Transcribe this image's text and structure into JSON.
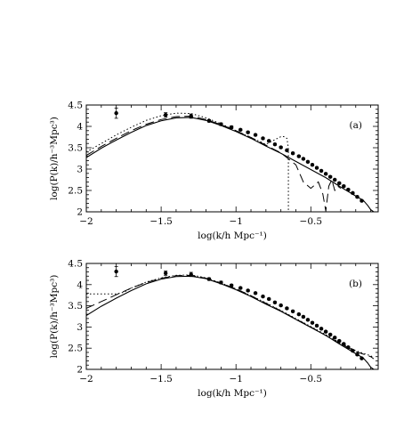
{
  "chart_data": [
    {
      "type": "line",
      "panel_label": "(a)",
      "xlabel": "log(k/h Mpc⁻¹)",
      "ylabel": "log(P(k)/h⁻³Mpc³)",
      "xlim": [
        -2,
        -0.05
      ],
      "ylim": [
        2,
        4.5
      ],
      "xticks": [
        -2,
        -1.5,
        -1,
        -0.5
      ],
      "xtick_labels": [
        "−2",
        "−1.5",
        "−1",
        "−0.5"
      ],
      "yticks": [
        2,
        2.5,
        3,
        3.5,
        4,
        4.5
      ],
      "ytick_labels": [
        "2",
        "2.5",
        "3",
        "3.5",
        "4",
        "4.5"
      ],
      "grid": false,
      "series": [
        {
          "style": "solid",
          "x": [
            -2,
            -1.9,
            -1.8,
            -1.7,
            -1.6,
            -1.5,
            -1.4,
            -1.3,
            -1.2,
            -1.1,
            -1.0,
            -0.9,
            -0.8,
            -0.7,
            -0.6,
            -0.5,
            -0.4,
            -0.3,
            -0.2,
            -0.15,
            -0.12,
            -0.1,
            -0.08
          ],
          "y": [
            3.27,
            3.49,
            3.68,
            3.86,
            4.02,
            4.13,
            4.2,
            4.21,
            4.14,
            4.02,
            3.88,
            3.72,
            3.54,
            3.37,
            3.18,
            2.99,
            2.8,
            2.58,
            2.37,
            2.27,
            2.15,
            2.05,
            2.0
          ]
        },
        {
          "style": "dashed",
          "x": [
            -2,
            -1.9,
            -1.8,
            -1.7,
            -1.6,
            -1.5,
            -1.4,
            -1.3,
            -1.2,
            -1.1,
            -1.0,
            -0.9,
            -0.8,
            -0.7,
            -0.6,
            -0.55,
            -0.5,
            -0.45,
            -0.42,
            -0.4,
            -0.38,
            -0.36,
            -0.34,
            -0.32,
            -0.3
          ],
          "y": [
            3.32,
            3.53,
            3.72,
            3.9,
            4.05,
            4.16,
            4.23,
            4.24,
            4.16,
            4.04,
            3.9,
            3.74,
            3.56,
            3.38,
            3.1,
            2.7,
            2.55,
            2.7,
            2.42,
            2.02,
            2.6,
            2.75,
            2.5,
            2.6,
            2.55
          ]
        },
        {
          "style": "dotted",
          "x": [
            -2,
            -1.9,
            -1.8,
            -1.7,
            -1.6,
            -1.5,
            -1.4,
            -1.3,
            -1.2,
            -1.1,
            -1.0,
            -0.9,
            -0.8,
            -0.7,
            -0.68,
            -0.66,
            -0.65,
            -0.65
          ],
          "y": [
            3.4,
            3.6,
            3.8,
            3.98,
            4.14,
            4.25,
            4.31,
            4.3,
            4.2,
            4.06,
            3.9,
            3.74,
            3.58,
            3.76,
            3.76,
            3.72,
            3.5,
            2.0
          ]
        }
      ],
      "points": {
        "x": [
          -1.8,
          -1.47,
          -1.3,
          -1.18,
          -1.1,
          -1.03,
          -0.97,
          -0.92,
          -0.87,
          -0.82,
          -0.78,
          -0.74,
          -0.7,
          -0.66,
          -0.62,
          -0.58,
          -0.55,
          -0.52,
          -0.49,
          -0.46,
          -0.43,
          -0.4,
          -0.37,
          -0.34,
          -0.31,
          -0.28,
          -0.25,
          -0.22,
          -0.19,
          -0.16
        ],
        "y": [
          4.31,
          4.27,
          4.24,
          4.13,
          4.05,
          3.98,
          3.92,
          3.86,
          3.8,
          3.72,
          3.66,
          3.58,
          3.51,
          3.44,
          3.37,
          3.3,
          3.24,
          3.17,
          3.1,
          3.03,
          2.96,
          2.89,
          2.82,
          2.75,
          2.67,
          2.6,
          2.52,
          2.44,
          2.35,
          2.26
        ],
        "yerr": [
          0.12,
          0.05,
          0.05,
          0.03,
          0.03,
          0.03,
          0.02,
          0.02,
          0.02,
          0.02,
          0.02,
          0.02,
          0.02,
          0.02,
          0.02,
          0.02,
          0.02,
          0.02,
          0.02,
          0.02,
          0.02,
          0.02,
          0.02,
          0.02,
          0.02,
          0.02,
          0.02,
          0.02,
          0.02,
          0.02
        ]
      }
    },
    {
      "type": "line",
      "panel_label": "(b)",
      "xlabel": "log(k/h Mpc⁻¹)",
      "ylabel": "log(P(k)/h⁻³Mpc³)",
      "xlim": [
        -2,
        -0.05
      ],
      "ylim": [
        2,
        4.5
      ],
      "xticks": [
        -2,
        -1.5,
        -1,
        -0.5
      ],
      "xtick_labels": [
        "−2",
        "−1.5",
        "−1",
        "−0.5"
      ],
      "yticks": [
        2,
        2.5,
        3,
        3.5,
        4,
        4.5
      ],
      "ytick_labels": [
        "2",
        "2.5",
        "3",
        "3.5",
        "4",
        "4.5"
      ],
      "grid": false,
      "series": [
        {
          "style": "solid",
          "x": [
            -2,
            -1.9,
            -1.8,
            -1.7,
            -1.6,
            -1.5,
            -1.4,
            -1.3,
            -1.2,
            -1.1,
            -1.0,
            -0.9,
            -0.8,
            -0.7,
            -0.6,
            -0.5,
            -0.4,
            -0.3,
            -0.2,
            -0.15,
            -0.12,
            -0.1,
            -0.08
          ],
          "y": [
            3.27,
            3.49,
            3.68,
            3.86,
            4.02,
            4.13,
            4.19,
            4.2,
            4.14,
            4.02,
            3.88,
            3.72,
            3.54,
            3.37,
            3.18,
            2.99,
            2.8,
            2.58,
            2.37,
            2.27,
            2.15,
            2.05,
            2.0
          ]
        },
        {
          "style": "dashed",
          "x": [
            -2,
            -1.9,
            -1.8,
            -1.7,
            -1.6,
            -1.5,
            -1.4,
            -1.3,
            -1.2,
            -1.1,
            -1.0,
            -0.9,
            -0.8,
            -0.7,
            -0.6,
            -0.5,
            -0.4,
            -0.3,
            -0.2,
            -0.1,
            -0.08
          ],
          "y": [
            3.44,
            3.6,
            3.76,
            3.92,
            4.05,
            4.15,
            4.21,
            4.22,
            4.15,
            4.03,
            3.9,
            3.74,
            3.56,
            3.38,
            3.19,
            3.0,
            2.8,
            2.6,
            2.42,
            2.3,
            2.25
          ]
        },
        {
          "style": "dotted",
          "x": [
            -2,
            -1.9,
            -1.8,
            -1.75,
            -1.7,
            -1.6,
            -1.5,
            -1.4,
            -1.3,
            -1.2,
            -1.1,
            -1.0,
            -0.9,
            -0.8,
            -0.7,
            -0.6,
            -0.5,
            -0.4,
            -0.3,
            -0.2,
            -0.1,
            -0.08
          ],
          "y": [
            3.78,
            3.78,
            3.78,
            3.82,
            3.92,
            4.06,
            4.16,
            4.22,
            4.23,
            4.16,
            4.04,
            3.9,
            3.74,
            3.57,
            3.39,
            3.2,
            3.01,
            2.82,
            2.62,
            2.44,
            2.32,
            2.28
          ]
        }
      ],
      "points": {
        "x": [
          -1.8,
          -1.47,
          -1.3,
          -1.18,
          -1.1,
          -1.03,
          -0.97,
          -0.92,
          -0.87,
          -0.82,
          -0.78,
          -0.74,
          -0.7,
          -0.66,
          -0.62,
          -0.58,
          -0.55,
          -0.52,
          -0.49,
          -0.46,
          -0.43,
          -0.4,
          -0.37,
          -0.34,
          -0.31,
          -0.28,
          -0.25,
          -0.22,
          -0.19,
          -0.16
        ],
        "y": [
          4.31,
          4.27,
          4.24,
          4.13,
          4.05,
          3.98,
          3.92,
          3.86,
          3.8,
          3.72,
          3.66,
          3.58,
          3.51,
          3.44,
          3.37,
          3.3,
          3.24,
          3.17,
          3.1,
          3.03,
          2.96,
          2.89,
          2.82,
          2.75,
          2.67,
          2.6,
          2.52,
          2.44,
          2.35,
          2.26
        ],
        "yerr": [
          0.12,
          0.05,
          0.05,
          0.03,
          0.03,
          0.03,
          0.02,
          0.02,
          0.02,
          0.02,
          0.02,
          0.02,
          0.02,
          0.02,
          0.02,
          0.02,
          0.02,
          0.02,
          0.02,
          0.02,
          0.02,
          0.02,
          0.02,
          0.02,
          0.02,
          0.02,
          0.02,
          0.02,
          0.02,
          0.02
        ]
      }
    }
  ]
}
